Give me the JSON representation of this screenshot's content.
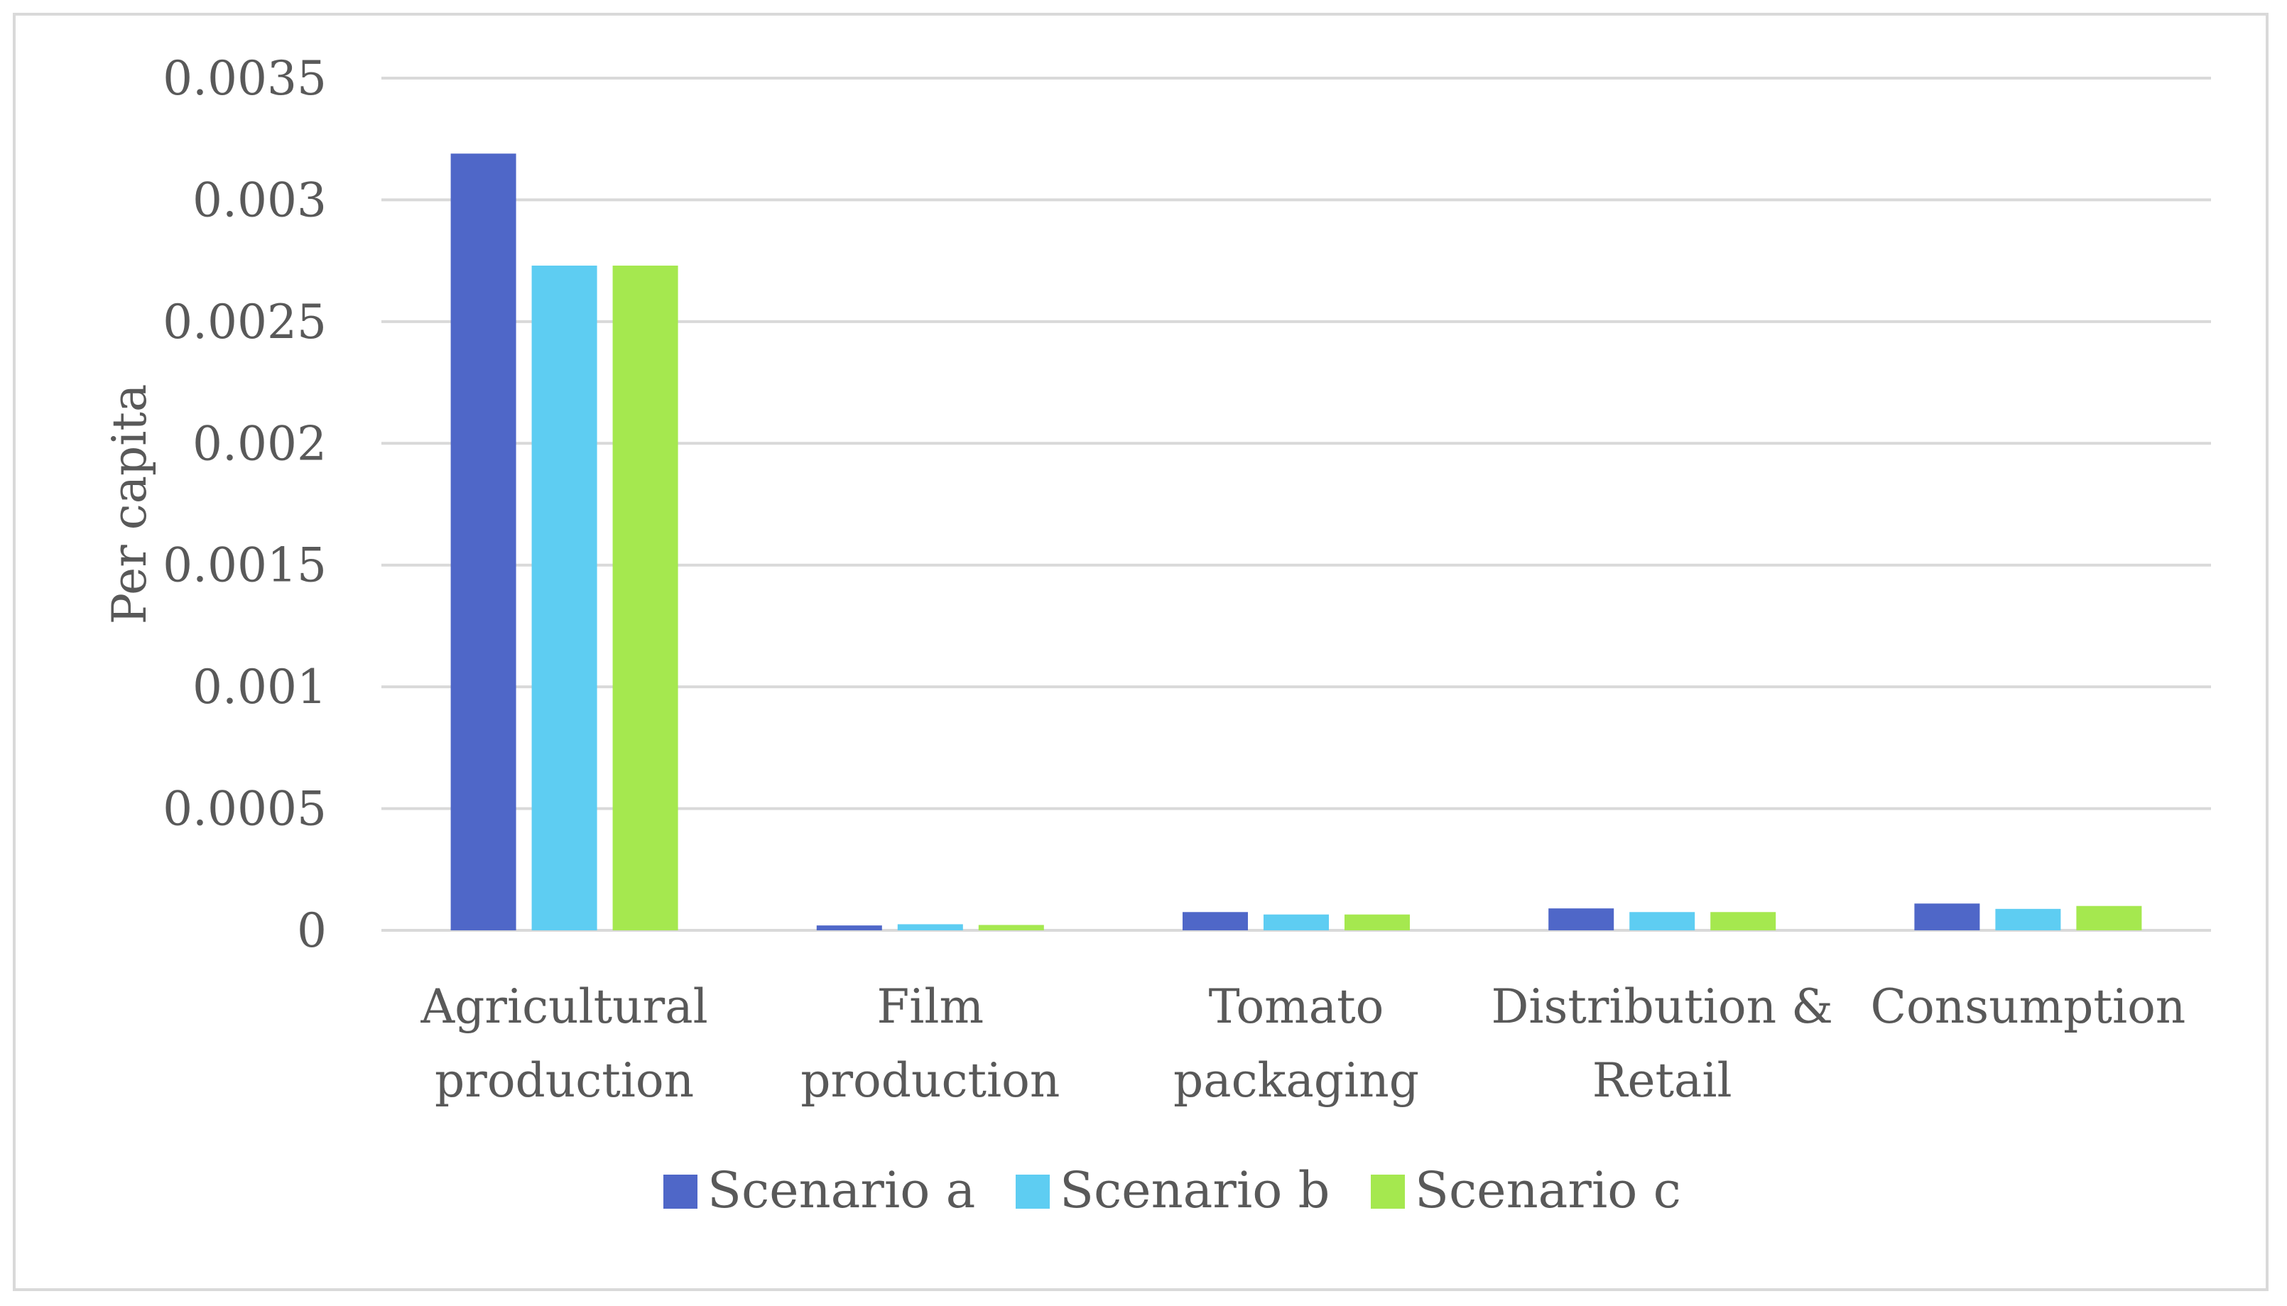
{
  "chart_data": {
    "type": "bar",
    "title": "",
    "xlabel": "",
    "ylabel": "Per capita",
    "ylim": [
      0,
      0.0035
    ],
    "yticks": [
      "0",
      "0.0005",
      "0.001",
      "0.0015",
      "0.002",
      "0.0025",
      "0.003",
      "0.0035"
    ],
    "ytick_values": [
      0,
      0.0005,
      0.001,
      0.0015,
      0.002,
      0.0025,
      0.003,
      0.0035
    ],
    "grid": true,
    "legend_position": "bottom",
    "categories": [
      [
        "Agricultural",
        "production"
      ],
      [
        "Film",
        "production"
      ],
      [
        "Tomato",
        "packaging"
      ],
      [
        "Distribution &",
        "Retail"
      ],
      [
        "Consumption"
      ]
    ],
    "series": [
      {
        "name": "Scenario a",
        "color": "#4f67c8",
        "values": [
          0.00319,
          2e-05,
          7.5e-05,
          9e-05,
          0.00011
        ]
      },
      {
        "name": "Scenario b",
        "color": "#5ecdf2",
        "values": [
          0.00273,
          2.5e-05,
          6.5e-05,
          7.5e-05,
          8.8e-05
        ]
      },
      {
        "name": "Scenario c",
        "color": "#a5e84f",
        "values": [
          0.00273,
          2.2e-05,
          6.5e-05,
          7.5e-05,
          0.0001
        ]
      }
    ]
  }
}
